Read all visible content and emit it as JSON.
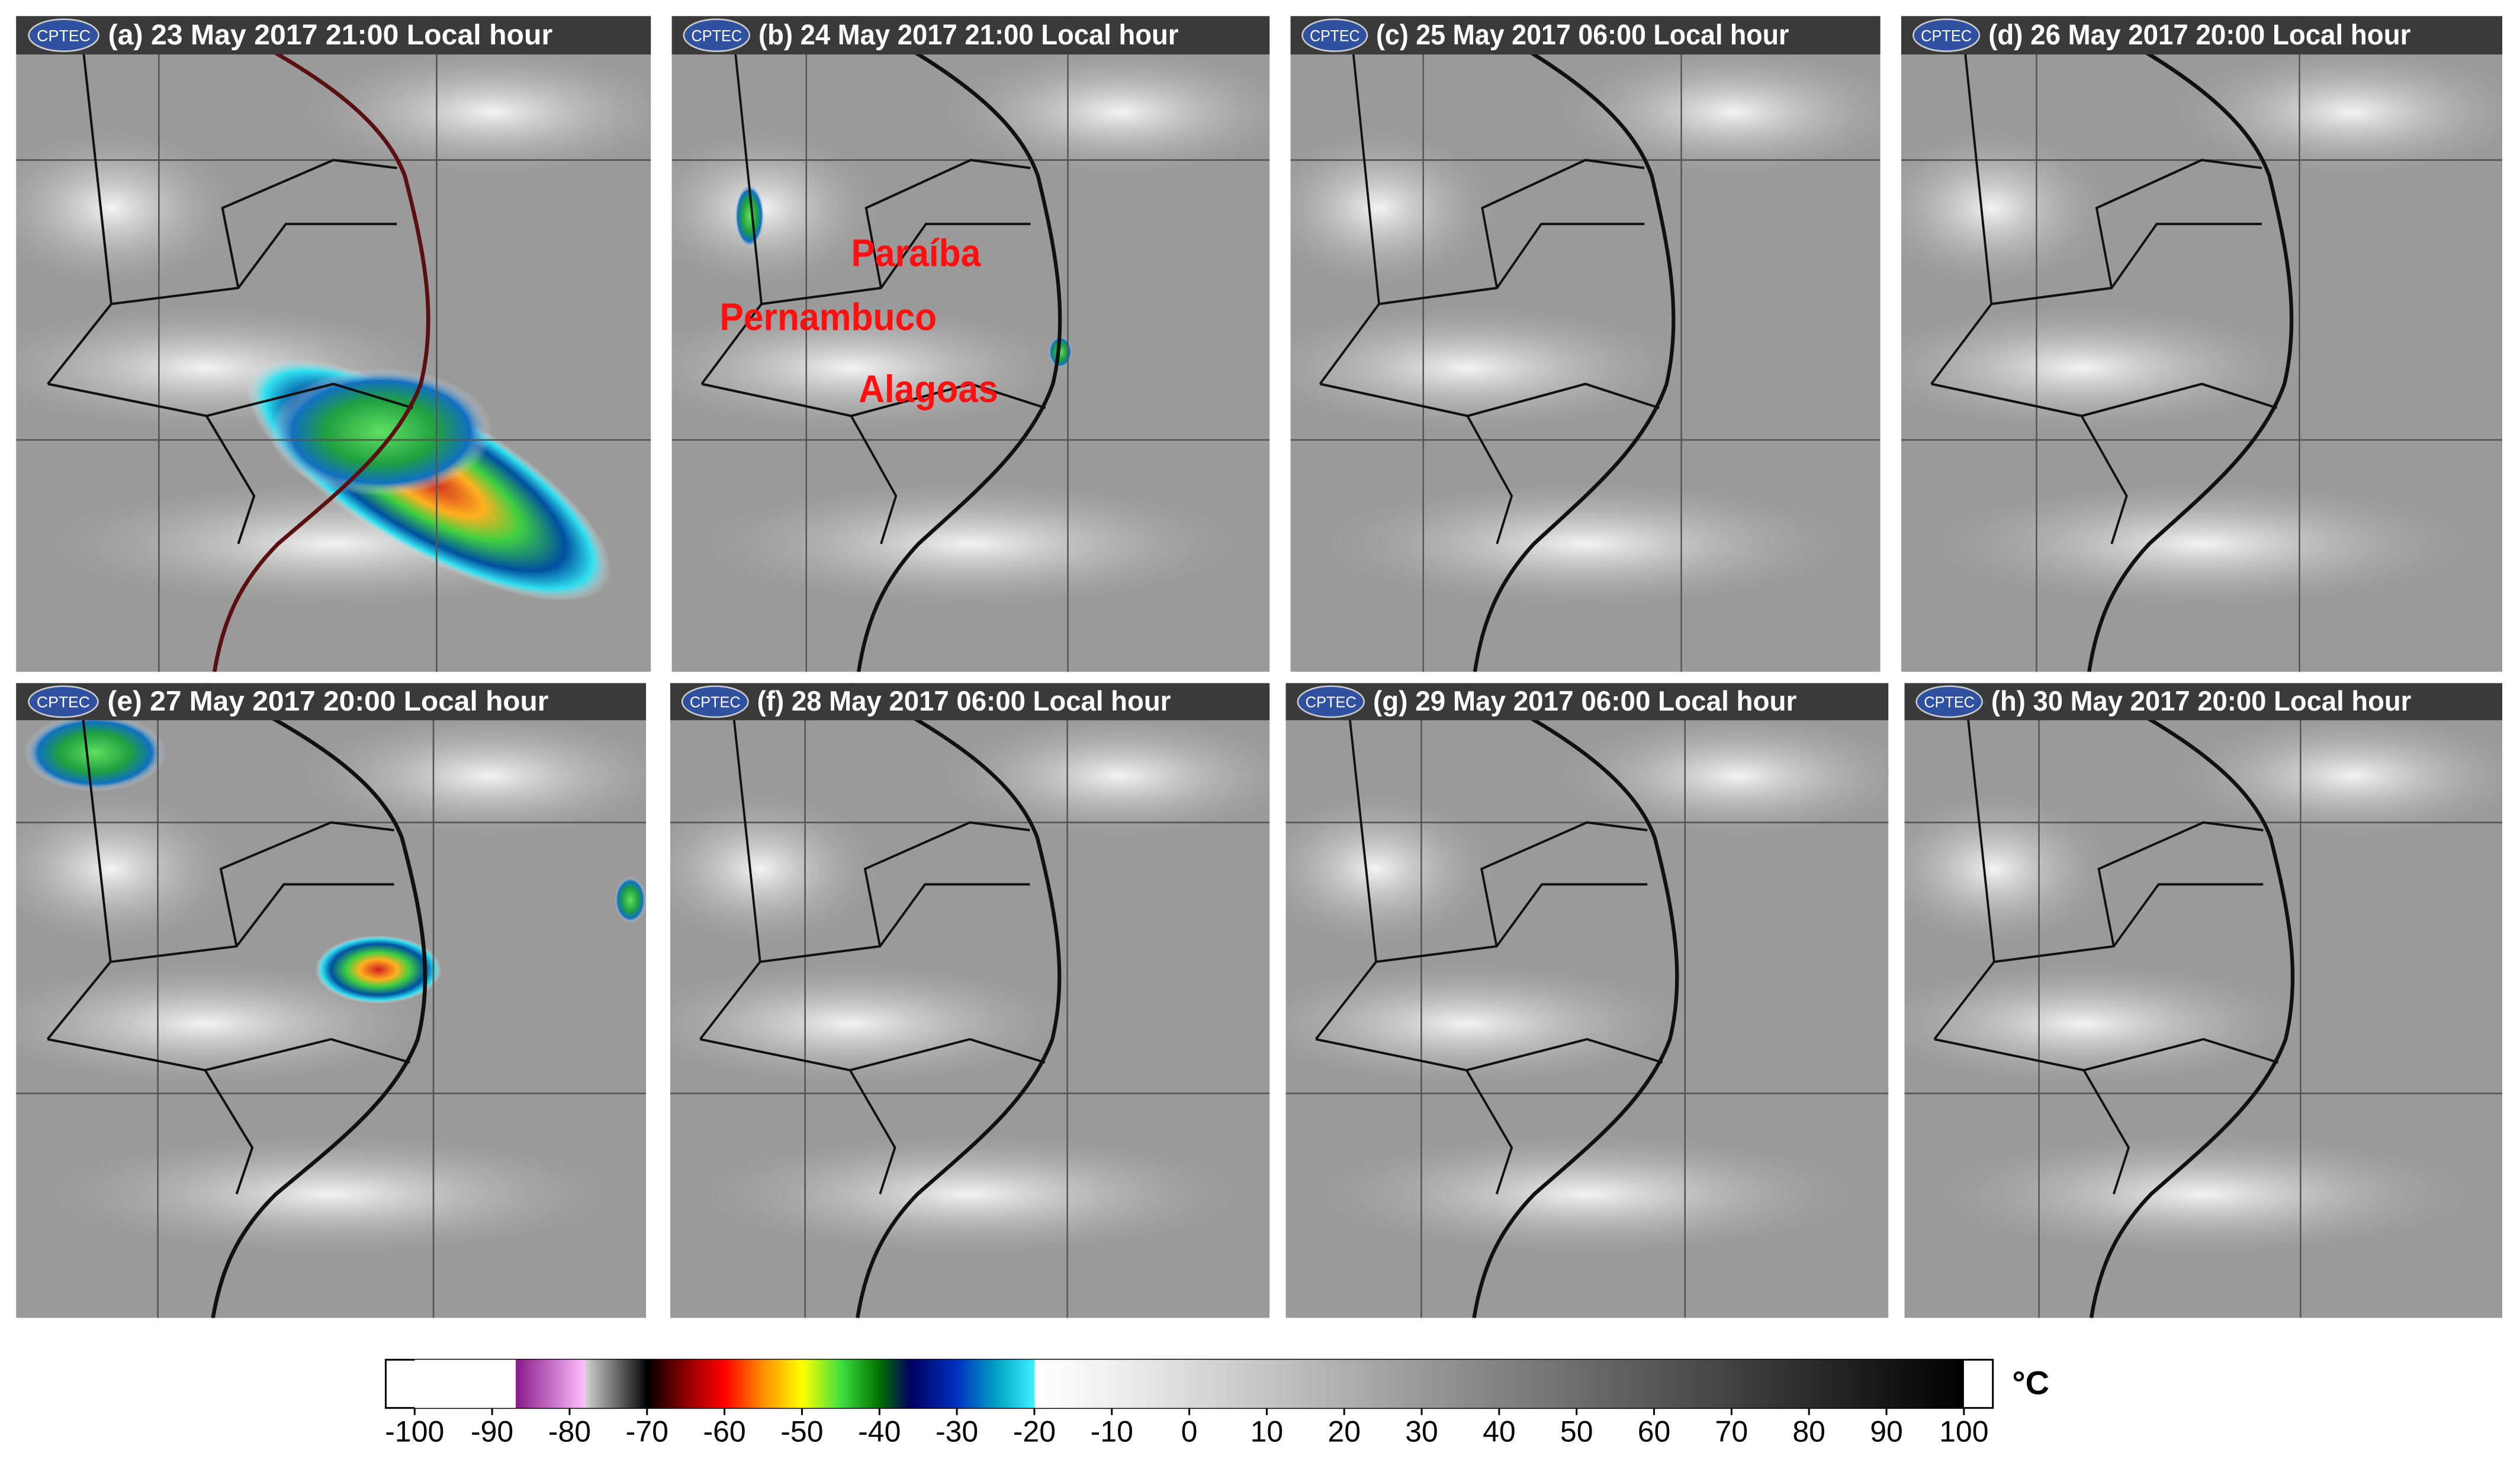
{
  "logo": "CPTEC",
  "panels": [
    {
      "title": "(a) 23 May 2017 21:00 Local hour"
    },
    {
      "title": "(b) 24 May 2017 21:00 Local hour",
      "labels": [
        "Paraíba",
        "Pernambuco",
        "Alagoas"
      ]
    },
    {
      "title": "(c) 25 May 2017 06:00 Local hour"
    },
    {
      "title": "(d) 26 May 2017 20:00 Local hour"
    },
    {
      "title": "(e) 27 May 2017 20:00 Local hour"
    },
    {
      "title": "(f) 28 May 2017 06:00 Local hour"
    },
    {
      "title": "(g) 29 May 2017 06:00 Local hour"
    },
    {
      "title": "(h) 30 May 2017 20:00 Local hour"
    }
  ],
  "colorbar": {
    "unit": "°C",
    "lim": [
      -100,
      100
    ],
    "ticks": [
      -100,
      -90,
      -80,
      -70,
      -60,
      -50,
      -40,
      -30,
      -20,
      -10,
      0,
      10,
      20,
      30,
      40,
      50,
      60,
      70,
      80,
      90,
      100
    ],
    "stops": [
      [
        -100,
        "#ffffff"
      ],
      [
        -87,
        "#ffffff"
      ],
      [
        -86.9,
        "#8a1a8a"
      ],
      [
        -78,
        "#ffc0ff"
      ],
      [
        -77.9,
        "#d0d0d0"
      ],
      [
        -71,
        "#202020"
      ],
      [
        -70,
        "#000000"
      ],
      [
        -65,
        "#8b0000"
      ],
      [
        -60,
        "#ff0000"
      ],
      [
        -55,
        "#ff9000"
      ],
      [
        -50,
        "#ffff00"
      ],
      [
        -45,
        "#40e040"
      ],
      [
        -40,
        "#007000"
      ],
      [
        -36,
        "#000060"
      ],
      [
        -30,
        "#0030c0"
      ],
      [
        -25,
        "#00a0c0"
      ],
      [
        -20,
        "#40f0ff"
      ],
      [
        -19.9,
        "#ffffff"
      ],
      [
        -10,
        "#f0f0f0"
      ],
      [
        100,
        "#000000"
      ]
    ]
  }
}
